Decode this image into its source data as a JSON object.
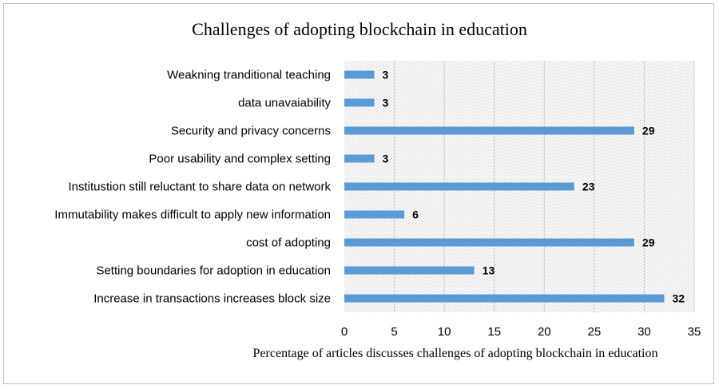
{
  "chart_data": {
    "type": "bar",
    "orientation": "horizontal",
    "title": "Challenges of adopting blockchain in education",
    "xlabel": "Percentage of articles  discusses challenges  of adopting blockchain  in education",
    "ylabel": "",
    "xlim": [
      0,
      35
    ],
    "xticks": [
      "0",
      "5",
      "10",
      "15",
      "20",
      "25",
      "30",
      "35"
    ],
    "categories": [
      "Weakning tranditional teaching",
      "data unavaiability",
      "Security and privacy concerns",
      "Poor usability and complex setting",
      "Institustion still reluctant to share data on network",
      "Immutability makes difficult to apply new information",
      "cost of adopting",
      "Setting boundaries for adoption in education",
      "Increase in transactions increases block size"
    ],
    "values": [
      3,
      3,
      29,
      3,
      23,
      6,
      29,
      13,
      32
    ],
    "value_labels": [
      "3",
      "3",
      "29",
      "3",
      "23",
      "6",
      "29",
      "13",
      "32"
    ],
    "bar_color": "#5b9bd5",
    "plot_background": "hatched-gray",
    "grid": true,
    "legend": "none"
  }
}
